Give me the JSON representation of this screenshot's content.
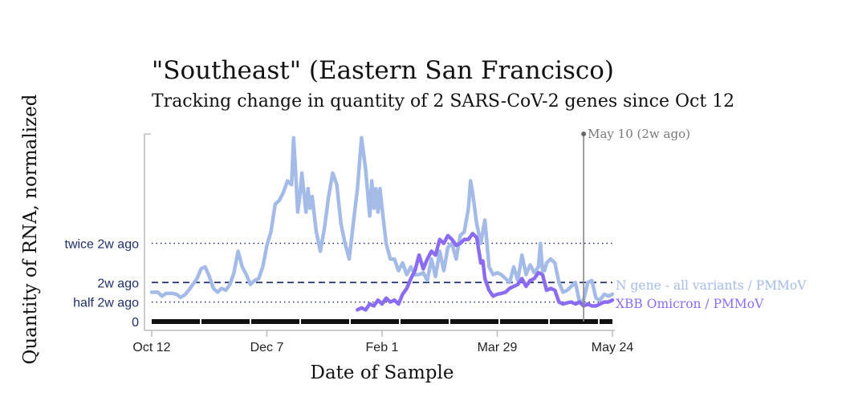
{
  "chart_data": {
    "type": "line",
    "title": "\"Southeast\" (Eastern San Francisco)",
    "subtitle": "Tracking change in quantity of 2 SARS-CoV-2 genes since Oct 12",
    "xlabel": "Date of Sample",
    "ylabel": "Quantity of RNA, normalized",
    "x_ticks": [
      "Oct 12",
      "Dec 7",
      "Feb 1",
      "Mar 29",
      "May 24"
    ],
    "x_range_days": [
      0,
      224
    ],
    "y_range": [
      0,
      4.8
    ],
    "reference_lines": [
      {
        "label": "twice 2w ago",
        "value": 2.0,
        "style": "dotted"
      },
      {
        "label": "2w ago",
        "value": 1.0,
        "style": "dashed"
      },
      {
        "label": "half 2w ago",
        "value": 0.5,
        "style": "dotted"
      },
      {
        "label": "0",
        "value": 0,
        "style": "solid"
      }
    ],
    "marker": {
      "label": "May 10 (2w ago)",
      "day": 210
    },
    "series": [
      {
        "name": "N gene - all variants / PMMoV",
        "color": "#a3bbe6",
        "points": [
          [
            0,
            0.75
          ],
          [
            3,
            0.75
          ],
          [
            5,
            0.65
          ],
          [
            7,
            0.72
          ],
          [
            10,
            0.72
          ],
          [
            12,
            0.7
          ],
          [
            14,
            0.62
          ],
          [
            16,
            0.68
          ],
          [
            18,
            0.8
          ],
          [
            20,
            0.95
          ],
          [
            22,
            1.1
          ],
          [
            24,
            1.35
          ],
          [
            26,
            1.4
          ],
          [
            28,
            1.15
          ],
          [
            30,
            0.85
          ],
          [
            32,
            0.75
          ],
          [
            34,
            0.85
          ],
          [
            36,
            0.8
          ],
          [
            38,
            0.95
          ],
          [
            40,
            1.25
          ],
          [
            42,
            1.8
          ],
          [
            44,
            1.4
          ],
          [
            46,
            1.2
          ],
          [
            48,
            0.95
          ],
          [
            50,
            1.05
          ],
          [
            52,
            1.1
          ],
          [
            54,
            1.4
          ],
          [
            56,
            1.95
          ],
          [
            58,
            2.3
          ],
          [
            60,
            3.0
          ],
          [
            62,
            3.1
          ],
          [
            64,
            3.3
          ],
          [
            66,
            3.6
          ],
          [
            68,
            3.5
          ],
          [
            69,
            4.7
          ],
          [
            70,
            3.8
          ],
          [
            71,
            2.8
          ],
          [
            72,
            3.2
          ],
          [
            73,
            3.8
          ],
          [
            74,
            3.3
          ],
          [
            75,
            2.8
          ],
          [
            76,
            3.4
          ],
          [
            77,
            2.9
          ],
          [
            78,
            3.2
          ],
          [
            80,
            2.3
          ],
          [
            82,
            1.8
          ],
          [
            84,
            2.4
          ],
          [
            86,
            3.2
          ],
          [
            88,
            3.8
          ],
          [
            90,
            3.5
          ],
          [
            92,
            2.5
          ],
          [
            94,
            2.0
          ],
          [
            96,
            1.6
          ],
          [
            98,
            2.5
          ],
          [
            100,
            3.4
          ],
          [
            102,
            4.7
          ],
          [
            104,
            3.9
          ],
          [
            106,
            2.7
          ],
          [
            107,
            3.6
          ],
          [
            108,
            2.9
          ],
          [
            109,
            3.4
          ],
          [
            110,
            2.8
          ],
          [
            111,
            3.4
          ],
          [
            112,
            2.9
          ],
          [
            114,
            2.0
          ],
          [
            116,
            1.6
          ],
          [
            118,
            1.6
          ],
          [
            120,
            1.3
          ],
          [
            122,
            1.5
          ],
          [
            124,
            1.2
          ],
          [
            126,
            1.4
          ],
          [
            128,
            1.2
          ],
          [
            130,
            1.2
          ],
          [
            132,
            1.25
          ],
          [
            134,
            1.05
          ],
          [
            136,
            1.6
          ],
          [
            138,
            1.15
          ],
          [
            140,
            1.8
          ],
          [
            142,
            1.3
          ],
          [
            144,
            1.9
          ],
          [
            146,
            2.0
          ],
          [
            148,
            1.6
          ],
          [
            150,
            2.2
          ],
          [
            152,
            2.3
          ],
          [
            154,
            2.9
          ],
          [
            155,
            3.6
          ],
          [
            156,
            3.3
          ],
          [
            158,
            2.5
          ],
          [
            160,
            2.0
          ],
          [
            162,
            2.6
          ],
          [
            164,
            1.4
          ],
          [
            166,
            1.2
          ],
          [
            168,
            1.25
          ],
          [
            170,
            1.2
          ],
          [
            172,
            1.1
          ],
          [
            174,
            1.0
          ],
          [
            176,
            1.4
          ],
          [
            178,
            1.05
          ],
          [
            180,
            1.7
          ],
          [
            182,
            1.2
          ],
          [
            184,
            1.45
          ],
          [
            186,
            1.25
          ],
          [
            188,
            1.4
          ],
          [
            189,
            2.0
          ],
          [
            190,
            1.3
          ],
          [
            191,
            1.3
          ],
          [
            192,
            1.5
          ],
          [
            194,
            1.6
          ],
          [
            196,
            1.5
          ],
          [
            198,
            1.0
          ],
          [
            200,
            0.75
          ],
          [
            202,
            0.8
          ],
          [
            204,
            0.9
          ],
          [
            206,
            1.0
          ],
          [
            208,
            0.5
          ],
          [
            210,
            0.55
          ],
          [
            212,
            1.0
          ],
          [
            214,
            1.05
          ],
          [
            216,
            0.6
          ],
          [
            218,
            0.55
          ],
          [
            220,
            0.7
          ],
          [
            222,
            0.65
          ],
          [
            224,
            0.7
          ]
        ]
      },
      {
        "name": "XBB Omicron / PMMoV",
        "color": "#8b6cf0",
        "points": [
          [
            100,
            0.3
          ],
          [
            102,
            0.35
          ],
          [
            104,
            0.3
          ],
          [
            106,
            0.45
          ],
          [
            108,
            0.4
          ],
          [
            110,
            0.55
          ],
          [
            112,
            0.45
          ],
          [
            114,
            0.6
          ],
          [
            116,
            0.5
          ],
          [
            118,
            0.55
          ],
          [
            120,
            0.45
          ],
          [
            122,
            0.7
          ],
          [
            124,
            0.85
          ],
          [
            126,
            1.1
          ],
          [
            128,
            1.3
          ],
          [
            130,
            1.7
          ],
          [
            132,
            1.35
          ],
          [
            134,
            1.6
          ],
          [
            136,
            1.8
          ],
          [
            138,
            1.7
          ],
          [
            140,
            2.1
          ],
          [
            142,
            2.0
          ],
          [
            144,
            2.2
          ],
          [
            146,
            2.1
          ],
          [
            148,
            1.95
          ],
          [
            150,
            2.0
          ],
          [
            152,
            2.1
          ],
          [
            154,
            2.1
          ],
          [
            156,
            2.25
          ],
          [
            158,
            2.15
          ],
          [
            160,
            1.5
          ],
          [
            161,
            1.55
          ],
          [
            162,
            1.1
          ],
          [
            164,
            0.8
          ],
          [
            166,
            0.65
          ],
          [
            168,
            0.7
          ],
          [
            170,
            0.72
          ],
          [
            172,
            0.75
          ],
          [
            174,
            0.85
          ],
          [
            176,
            0.9
          ],
          [
            178,
            0.95
          ],
          [
            180,
            1.1
          ],
          [
            182,
            0.9
          ],
          [
            184,
            1.05
          ],
          [
            186,
            1.1
          ],
          [
            188,
            1.25
          ],
          [
            190,
            1.2
          ],
          [
            192,
            0.8
          ],
          [
            194,
            0.85
          ],
          [
            196,
            0.8
          ],
          [
            198,
            0.5
          ],
          [
            200,
            0.45
          ],
          [
            202,
            0.48
          ],
          [
            204,
            0.5
          ],
          [
            206,
            0.45
          ],
          [
            208,
            0.5
          ],
          [
            210,
            0.4
          ],
          [
            212,
            0.45
          ],
          [
            214,
            0.4
          ],
          [
            216,
            0.4
          ],
          [
            218,
            0.45
          ],
          [
            220,
            0.5
          ],
          [
            222,
            0.5
          ],
          [
            224,
            0.55
          ]
        ]
      }
    ]
  }
}
